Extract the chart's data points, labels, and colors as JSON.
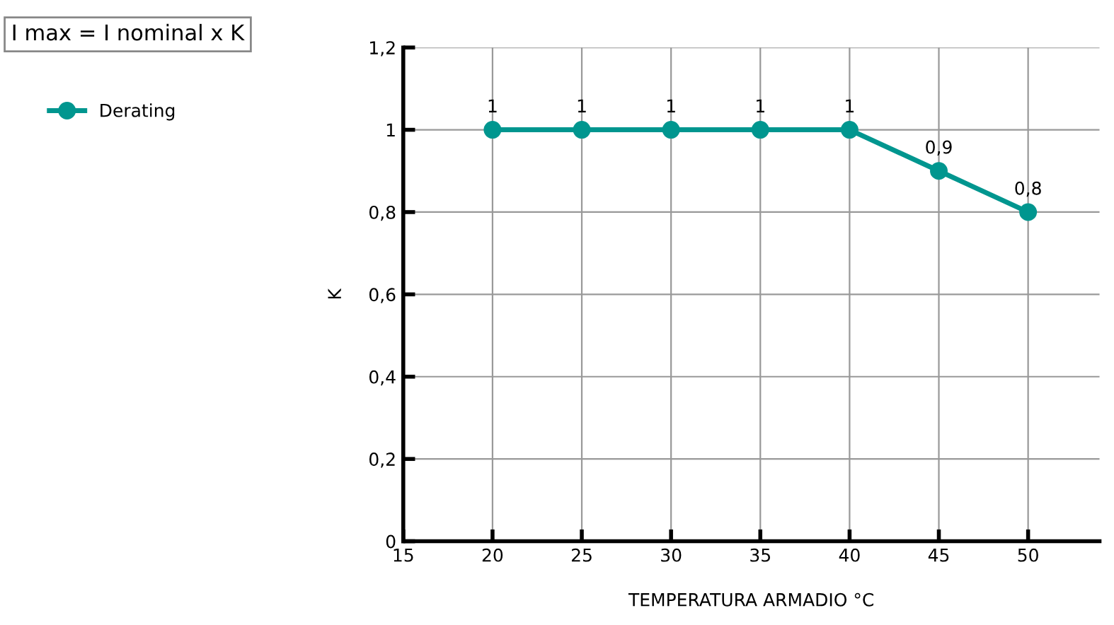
{
  "chart_data": {
    "type": "line",
    "xlabel": "TEMPERATURA ARMADIO °C",
    "ylabel": "K",
    "annotations": [
      "I max = I nominal x K"
    ],
    "x": [
      20,
      25,
      30,
      35,
      40,
      45,
      50
    ],
    "series": [
      {
        "name": "Derating",
        "color": "#00968f",
        "values": [
          1,
          1,
          1,
          1,
          1,
          0.9,
          0.8
        ],
        "value_labels": [
          "1",
          "1",
          "1",
          "1",
          "1",
          "0,9",
          "0,8"
        ]
      }
    ],
    "xlim": [
      15,
      54
    ],
    "xticks": [
      15,
      20,
      25,
      30,
      35,
      40,
      45,
      50
    ],
    "ylim": [
      0,
      1.2
    ],
    "yticks": [
      0,
      {
        "value": 0.2,
        "label": "0,2"
      },
      {
        "value": 0.4,
        "label": "0,4"
      },
      {
        "value": 0.6,
        "label": "0,6"
      },
      {
        "value": 0.8,
        "label": "0,8"
      },
      1,
      {
        "value": 1.2,
        "label": "1,2"
      }
    ],
    "grid": true,
    "legend": "top left",
    "marker": "circle",
    "line_style": "solid"
  }
}
